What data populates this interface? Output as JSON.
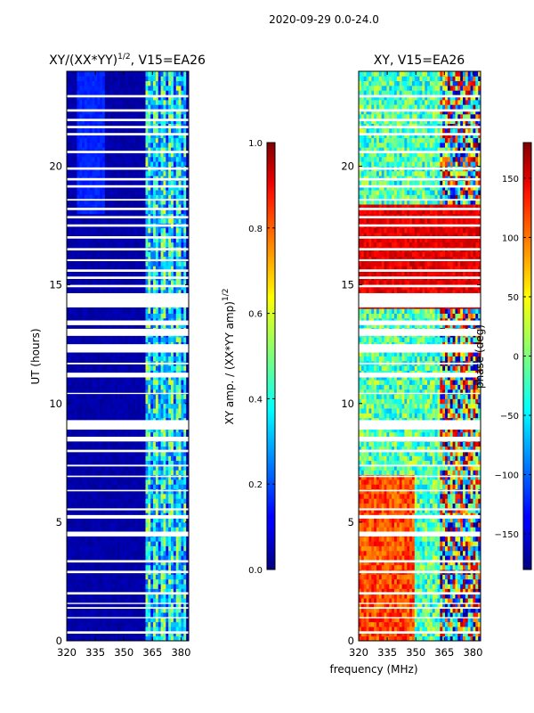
{
  "suptitle": "2020-09-29 0.0-24.0",
  "shared_xlabel": "frequency (MHz)",
  "colors": {
    "colormap": "jet",
    "gap": "#ffffff",
    "frame": "#000000"
  },
  "chart_data": [
    {
      "type": "heatmap",
      "title": "XY/(XX*YY)",
      "title_exponent": "1/2",
      "title_suffix": ", V15=EA26",
      "xlabel": "",
      "ylabel": "UT (hours)",
      "xlim": [
        320,
        384
      ],
      "ylim": [
        0,
        24
      ],
      "xticks": [
        320,
        335,
        350,
        365,
        380
      ],
      "xtick_labels": [
        "320",
        "335",
        "350",
        "365",
        "380"
      ],
      "yticks": [
        0,
        5,
        10,
        15,
        20
      ],
      "ytick_labels": [
        "0",
        "5",
        "10",
        "15",
        "20"
      ],
      "colorbar": {
        "label": "XY amp. / (XX*YY amp)",
        "label_exponent": "1/2",
        "range": [
          0,
          1
        ],
        "ticks": [
          0.0,
          0.2,
          0.4,
          0.6,
          0.8,
          1.0
        ],
        "tick_labels": [
          "0.0",
          "0.2",
          "0.4",
          "0.6",
          "0.8",
          "1.0"
        ]
      },
      "description_values": {
        "low_band_mhz": [
          320,
          362
        ],
        "low_band_value": 0.02,
        "high_band_mhz": [
          362,
          382
        ],
        "high_band_value_range": [
          0.2,
          0.6
        ]
      }
    },
    {
      "type": "heatmap",
      "title": "XY, V15=EA26",
      "xlabel": "",
      "ylabel": "",
      "xlim": [
        320,
        384
      ],
      "ylim": [
        0,
        24
      ],
      "xticks": [
        320,
        335,
        350,
        365,
        380
      ],
      "xtick_labels": [
        "320",
        "335",
        "350",
        "365",
        "380"
      ],
      "yticks": [
        0,
        5,
        10,
        15,
        20
      ],
      "ytick_labels": [
        "0",
        "5",
        "10",
        "15",
        "20"
      ],
      "colorbar": {
        "label": "phase (deg)",
        "range": [
          -180,
          180
        ],
        "ticks": [
          -150,
          -100,
          -50,
          0,
          50,
          100,
          150
        ],
        "tick_labels": [
          "−150",
          "−100",
          "−50",
          "0",
          "50",
          "100",
          "150"
        ]
      },
      "description_values": {
        "phase_range_deg": [
          -180,
          180
        ]
      }
    }
  ],
  "flagged_gaps_hours": [
    [
      0.3,
      0.4
    ],
    [
      0.95,
      1.0
    ],
    [
      1.35,
      1.42
    ],
    [
      1.55,
      1.6
    ],
    [
      1.95,
      2.05
    ],
    [
      2.85,
      2.95
    ],
    [
      3.3,
      3.4
    ],
    [
      4.4,
      4.6
    ],
    [
      5.15,
      5.3
    ],
    [
      5.5,
      5.58
    ],
    [
      6.3,
      6.36
    ],
    [
      6.9,
      6.96
    ],
    [
      7.35,
      7.42
    ],
    [
      7.95,
      8.05
    ],
    [
      8.4,
      8.6
    ],
    [
      8.9,
      9.3
    ],
    [
      10.4,
      10.45
    ],
    [
      11.1,
      11.3
    ],
    [
      11.65,
      11.72
    ],
    [
      12.15,
      12.5
    ],
    [
      12.85,
      13.15
    ],
    [
      13.3,
      13.5
    ],
    [
      14.05,
      14.65
    ],
    [
      14.9,
      15.0
    ],
    [
      15.25,
      15.35
    ],
    [
      15.55,
      15.65
    ],
    [
      16.0,
      16.08
    ],
    [
      16.45,
      16.55
    ],
    [
      16.95,
      17.05
    ],
    [
      17.45,
      17.55
    ],
    [
      17.8,
      17.9
    ],
    [
      18.15,
      18.25
    ],
    [
      18.55,
      18.62
    ],
    [
      19.1,
      19.2
    ],
    [
      19.4,
      19.5
    ],
    [
      19.85,
      19.95
    ],
    [
      20.55,
      20.65
    ],
    [
      21.3,
      21.4
    ],
    [
      21.6,
      21.7
    ],
    [
      21.9,
      22.0
    ],
    [
      22.3,
      22.4
    ],
    [
      22.9,
      23.0
    ]
  ]
}
